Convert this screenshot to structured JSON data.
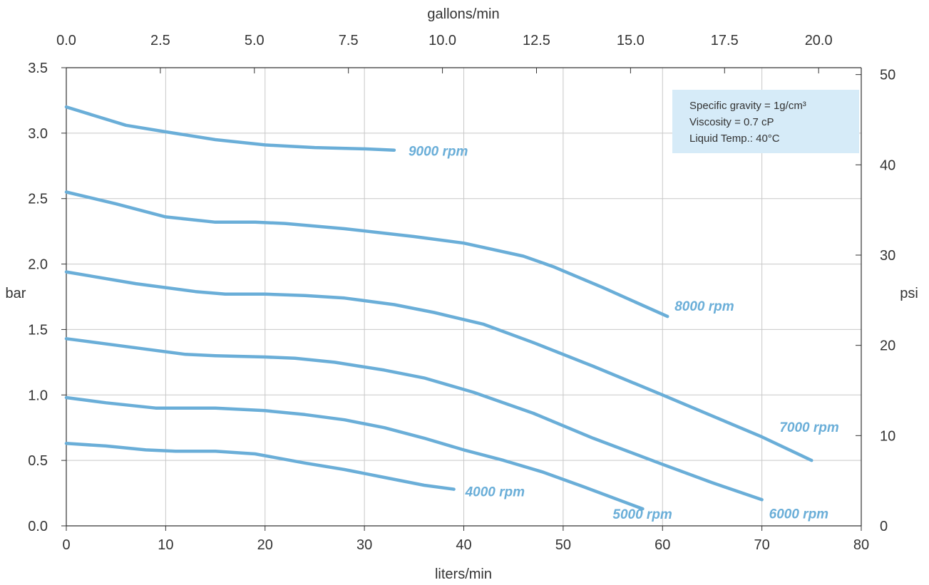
{
  "chart_data": {
    "type": "line",
    "title": "",
    "xlabel": "liters/min",
    "x2label": "gallons/min",
    "ylabel": "bar",
    "y2label": "psi",
    "xlim": [
      0,
      80
    ],
    "ylim": [
      0,
      3.5
    ],
    "x2lim": [
      0,
      21.134
    ],
    "y2lim": [
      0,
      50.763
    ],
    "x_ticks": [
      "0",
      "10",
      "20",
      "30",
      "40",
      "50",
      "60",
      "70",
      "80"
    ],
    "y_ticks": [
      "0.0",
      "0.5",
      "1.0",
      "1.5",
      "2.0",
      "2.5",
      "3.0",
      "3.5"
    ],
    "x2_ticks": [
      "0.0",
      "2.5",
      "5.0",
      "7.5",
      "10.0",
      "12.5",
      "15.0",
      "17.5",
      "20.0"
    ],
    "y2_ticks": [
      "0",
      "10",
      "20",
      "30",
      "40",
      "50"
    ],
    "grid": true,
    "colors": {
      "curve": "#6aaed8",
      "note_bg": "#d6ebf8",
      "grid": "#c8c8c8",
      "axis": "#333333"
    },
    "annotation": {
      "lines": [
        "Specific gravity = 1g/cm³",
        "Viscosity = 0.7 cP",
        "Liquid Temp.: 40°C"
      ],
      "placement": "top-right"
    },
    "series": [
      {
        "name": "9000 rpm",
        "x": [
          0,
          3,
          6,
          10,
          15,
          20,
          25,
          30,
          33
        ],
        "y": [
          3.2,
          3.13,
          3.06,
          3.01,
          2.95,
          2.91,
          2.89,
          2.88,
          2.87
        ]
      },
      {
        "name": "8000 rpm",
        "x": [
          0,
          5,
          10,
          15,
          19,
          22,
          28,
          35,
          40,
          46,
          49,
          54,
          60.5
        ],
        "y": [
          2.55,
          2.46,
          2.36,
          2.32,
          2.32,
          2.31,
          2.27,
          2.21,
          2.16,
          2.06,
          1.98,
          1.82,
          1.6
        ]
      },
      {
        "name": "7000 rpm",
        "x": [
          0,
          7,
          13,
          16,
          20,
          24,
          28,
          33,
          37,
          42,
          47,
          53,
          60,
          65,
          70,
          75
        ],
        "y": [
          1.94,
          1.85,
          1.79,
          1.77,
          1.77,
          1.76,
          1.74,
          1.69,
          1.63,
          1.54,
          1.4,
          1.22,
          1.0,
          0.84,
          0.68,
          0.5
        ]
      },
      {
        "name": "6000 rpm",
        "x": [
          0,
          6,
          12,
          15,
          20,
          23,
          27,
          32,
          36,
          41,
          47,
          53,
          60,
          65,
          70
        ],
        "y": [
          1.43,
          1.37,
          1.31,
          1.3,
          1.29,
          1.28,
          1.25,
          1.19,
          1.13,
          1.02,
          0.86,
          0.67,
          0.47,
          0.33,
          0.2
        ]
      },
      {
        "name": "5000 rpm",
        "x": [
          0,
          4,
          9,
          11,
          15,
          20,
          24,
          28,
          32,
          36,
          40,
          44,
          48,
          52,
          58
        ],
        "y": [
          0.98,
          0.94,
          0.9,
          0.9,
          0.9,
          0.88,
          0.85,
          0.81,
          0.75,
          0.67,
          0.58,
          0.5,
          0.41,
          0.3,
          0.13
        ]
      },
      {
        "name": "4000 rpm",
        "x": [
          0,
          4,
          8,
          11,
          15,
          19,
          24,
          28,
          32,
          36,
          39
        ],
        "y": [
          0.63,
          0.61,
          0.58,
          0.57,
          0.57,
          0.55,
          0.48,
          0.43,
          0.37,
          0.31,
          0.28
        ]
      }
    ]
  }
}
